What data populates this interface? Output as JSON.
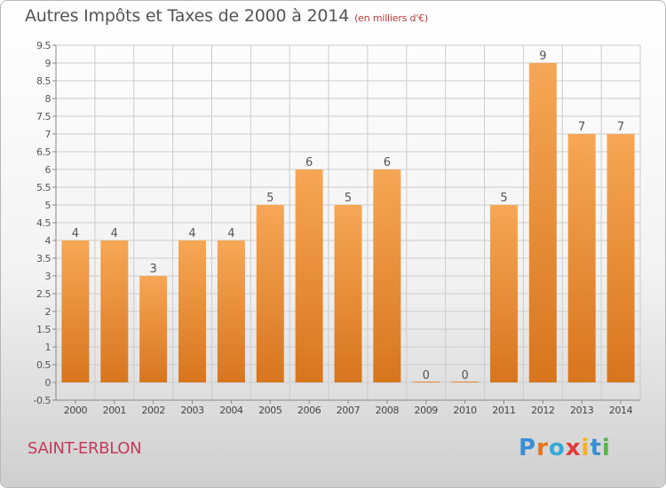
{
  "title": "Autres Impôts et Taxes de 2000 à 2014",
  "title_unit": "(en milliers d'€)",
  "city": "SAINT-ERBLON",
  "logo": {
    "text": "Proxiti",
    "colors": [
      "#3a8fd4",
      "#e8731c",
      "#35a9d8",
      "#e03a3a",
      "#f0b21e",
      "#3a8fd4",
      "#53b848"
    ]
  },
  "chart_data": {
    "type": "bar",
    "categories": [
      "2000",
      "2001",
      "2002",
      "2003",
      "2004",
      "2005",
      "2006",
      "2007",
      "2008",
      "2009",
      "2010",
      "2011",
      "2012",
      "2013",
      "2014"
    ],
    "values": [
      4,
      4,
      3,
      4,
      4,
      5,
      6,
      5,
      6,
      0,
      0,
      5,
      9,
      7,
      7
    ],
    "labels": [
      "4",
      "4",
      "3",
      "4",
      "4",
      "5",
      "6",
      "5",
      "6",
      "0",
      "0",
      "5",
      "9",
      "7",
      "7"
    ],
    "yticks": [
      "-0.5",
      "0",
      "0.5",
      "1",
      "1.5",
      "2",
      "2.5",
      "3",
      "3.5",
      "4",
      "4.5",
      "5",
      "5.5",
      "6",
      "6.5",
      "7",
      "7.5",
      "8",
      "8.5",
      "9",
      "9.5"
    ],
    "ylim": [
      -0.5,
      9.5
    ],
    "grid": true,
    "colors": {
      "bar_top": "#f6a755",
      "bar_bottom": "#d8751f",
      "grid": "#cccccc",
      "axis": "#888888"
    }
  }
}
